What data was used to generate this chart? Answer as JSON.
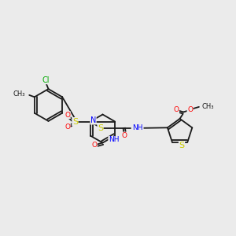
{
  "bg_color": "#ebebeb",
  "bond_color": "#1a1a1a",
  "atom_colors": {
    "N": "#0000ff",
    "O": "#ff0000",
    "S": "#cccc00",
    "Cl": "#00aa00",
    "H": "#888888"
  },
  "lw": 1.3,
  "fs": 6.5,
  "xlim": [
    0.0,
    10.0
  ],
  "ylim": [
    2.5,
    8.5
  ]
}
